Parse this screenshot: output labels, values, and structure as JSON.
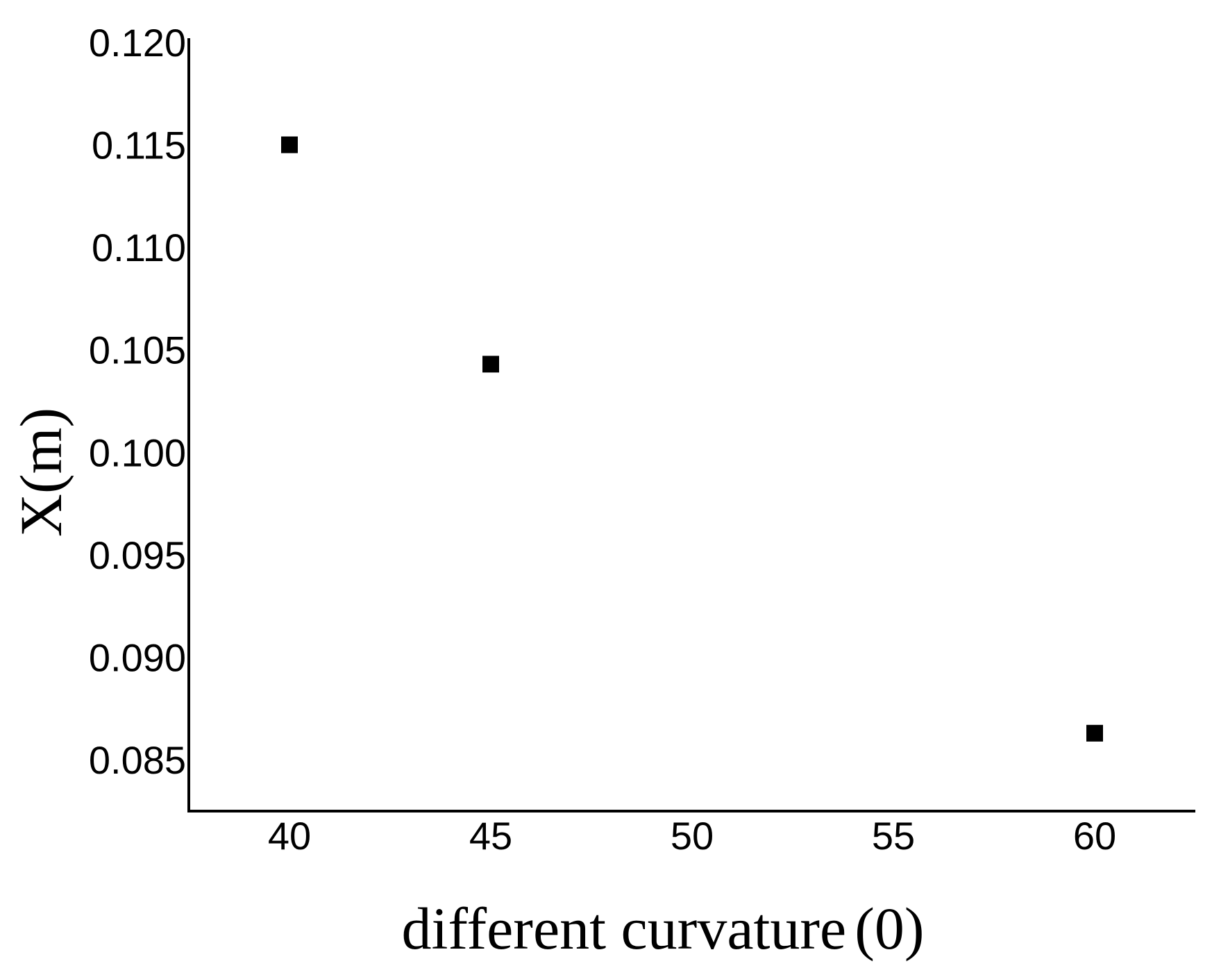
{
  "chart_data": {
    "type": "scatter",
    "title": "",
    "xlabel": "different curvature",
    "xlabel_unit": "(0)",
    "ylabel": "X(m)",
    "x": [
      40,
      45,
      60
    ],
    "y": [
      0.115,
      0.1043,
      0.0863
    ],
    "xlim": [
      37.5,
      62.5
    ],
    "ylim": [
      0.0825,
      0.1202
    ],
    "xticks": [
      "40",
      "45",
      "50",
      "55",
      "60"
    ],
    "yticks": [
      "0.085",
      "0.090",
      "0.095",
      "0.100",
      "0.105",
      "0.110",
      "0.115",
      "0.120"
    ],
    "xtick_values": [
      40,
      45,
      50,
      55,
      60
    ],
    "ytick_values": [
      0.085,
      0.09,
      0.095,
      0.1,
      0.105,
      0.11,
      0.115,
      0.12
    ],
    "marker": "square",
    "marker_color": "#000000",
    "grid": false,
    "legend": "none"
  }
}
